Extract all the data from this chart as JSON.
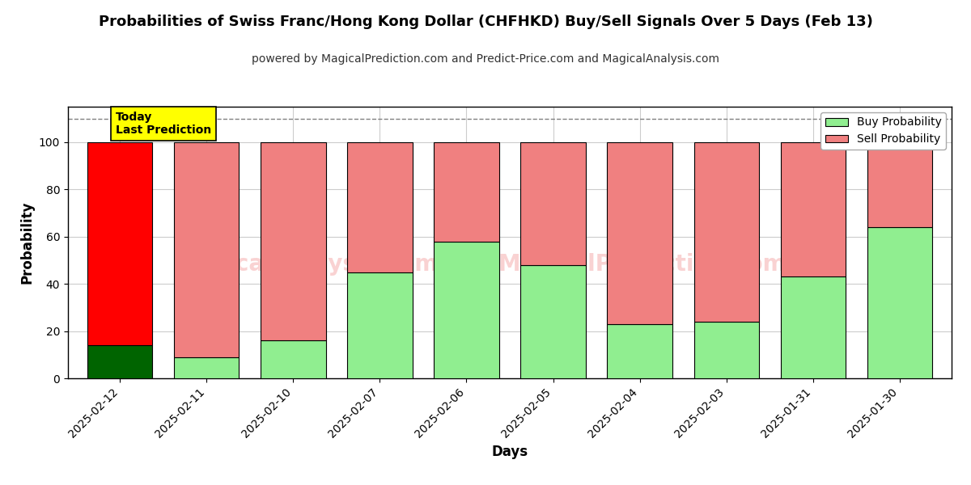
{
  "title": "Probabilities of Swiss Franc/Hong Kong Dollar (CHFHKD) Buy/Sell Signals Over 5 Days (Feb 13)",
  "subtitle": "powered by MagicalPrediction.com and Predict-Price.com and MagicalAnalysis.com",
  "xlabel": "Days",
  "ylabel": "Probability",
  "categories": [
    "2025-02-12",
    "2025-02-11",
    "2025-02-10",
    "2025-02-07",
    "2025-02-06",
    "2025-02-05",
    "2025-02-04",
    "2025-02-03",
    "2025-01-31",
    "2025-01-30"
  ],
  "buy_values": [
    14,
    9,
    16,
    45,
    58,
    48,
    23,
    24,
    43,
    64
  ],
  "sell_values": [
    86,
    91,
    84,
    55,
    42,
    52,
    77,
    76,
    57,
    36
  ],
  "buy_color_today": "#006400",
  "sell_color_today": "#ff0000",
  "buy_color_normal": "#90ee90",
  "sell_color_normal": "#f08080",
  "bar_edge_color": "#000000",
  "bar_width": 0.75,
  "ylim_max": 115,
  "yticks": [
    0,
    20,
    40,
    60,
    80,
    100
  ],
  "dashed_line_y": 110,
  "today_label": "Today\nLast Prediction",
  "today_label_bg": "#ffff00",
  "legend_buy_label": "Buy Probability",
  "legend_sell_label": "Sell Probability",
  "watermark_color": "#f08080",
  "watermark_alpha": 0.35,
  "grid_color": "#aaaaaa",
  "grid_alpha": 0.6,
  "background_color": "#ffffff",
  "title_fontsize": 13,
  "subtitle_fontsize": 10,
  "axis_label_fontsize": 12,
  "tick_fontsize": 10
}
